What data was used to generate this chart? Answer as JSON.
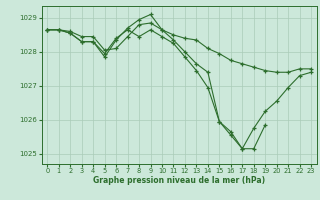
{
  "background_color": "#cce8da",
  "line_color": "#2d6e2d",
  "grid_color": "#aaccb8",
  "xlabel": "Graphe pression niveau de la mer (hPa)",
  "xlim": [
    -0.5,
    23.5
  ],
  "ylim": [
    1024.7,
    1029.35
  ],
  "yticks": [
    1025,
    1026,
    1027,
    1028,
    1029
  ],
  "xticks": [
    0,
    1,
    2,
    3,
    4,
    5,
    6,
    7,
    8,
    9,
    10,
    11,
    12,
    13,
    14,
    15,
    16,
    17,
    18,
    19,
    20,
    21,
    22,
    23
  ],
  "series": [
    [
      1028.65,
      1028.65,
      1028.6,
      1028.45,
      1028.45,
      1028.05,
      1028.1,
      1028.45,
      1028.8,
      1028.85,
      1028.65,
      1028.5,
      1028.4,
      1028.35,
      1028.1,
      1027.95,
      1027.75,
      1027.65,
      1027.55,
      1027.45,
      1027.4,
      1027.4,
      1027.5,
      1027.5
    ],
    [
      1028.65,
      1028.65,
      1028.55,
      1028.3,
      1028.3,
      1027.85,
      1028.35,
      1028.7,
      1028.95,
      1029.1,
      1028.65,
      1028.35,
      1028.0,
      1027.65,
      1027.4,
      1025.95,
      1025.55,
      1025.15,
      1025.15,
      1025.85,
      null,
      null,
      null,
      null
    ],
    [
      1028.65,
      1028.65,
      1028.55,
      1028.3,
      1028.3,
      1027.95,
      1028.4,
      1028.65,
      1028.45,
      1028.65,
      1028.45,
      1028.25,
      1027.85,
      1027.45,
      1026.95,
      1025.95,
      1025.65,
      1025.15,
      1025.75,
      1026.25,
      1026.55,
      1026.95,
      1027.3,
      1027.4
    ]
  ]
}
